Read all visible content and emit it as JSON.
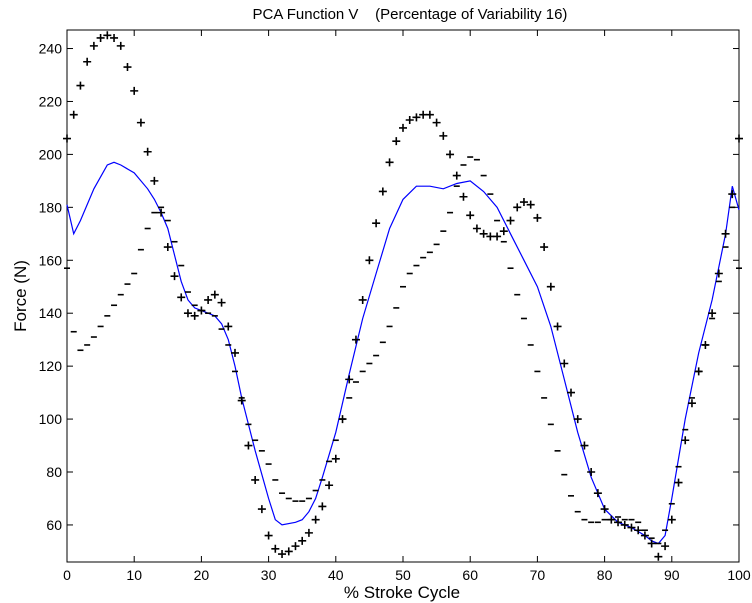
{
  "chart_data": {
    "type": "line",
    "title": "PCA Function V    (Percentage of Variability 16)",
    "xlabel": "% Stroke Cycle",
    "ylabel": "Force (N)",
    "xlim": [
      0,
      100
    ],
    "ylim": [
      46,
      247
    ],
    "xticks": [
      0,
      10,
      20,
      30,
      40,
      50,
      60,
      70,
      80,
      90,
      100
    ],
    "yticks": [
      60,
      80,
      100,
      120,
      140,
      160,
      180,
      200,
      220,
      240
    ],
    "grid": false,
    "legend": "none",
    "colors": {
      "mean": "#0000ff",
      "markers": "#000000"
    },
    "series": [
      {
        "marker": "line",
        "x": [
          0,
          1,
          2,
          4,
          6,
          7,
          8,
          10,
          12,
          13,
          14,
          15,
          16,
          17,
          18,
          19,
          20,
          21,
          22,
          23,
          24,
          25,
          26,
          28,
          30,
          31,
          32,
          34,
          35,
          36,
          37,
          38,
          40,
          42,
          44,
          46,
          48,
          50,
          52,
          54,
          56,
          58,
          60,
          62,
          64,
          66,
          68,
          70,
          72,
          74,
          76,
          78,
          80,
          82,
          84,
          86,
          87,
          88,
          89,
          90,
          92,
          94,
          96,
          98,
          99,
          100
        ],
        "y": [
          181,
          170,
          175,
          187,
          196,
          197,
          196,
          193,
          187,
          183,
          178,
          172,
          162,
          152,
          145,
          142,
          141,
          140,
          139,
          136,
          130,
          120,
          108,
          88,
          70,
          62,
          60,
          61,
          62,
          65,
          70,
          78,
          95,
          117,
          138,
          155,
          172,
          183,
          188,
          188,
          187,
          189,
          190,
          186,
          180,
          170,
          160,
          150,
          135,
          115,
          95,
          78,
          66,
          61,
          59,
          56,
          54,
          53,
          56,
          70,
          100,
          125,
          145,
          170,
          188,
          179
        ]
      },
      {
        "marker": "+",
        "x": [
          0,
          1,
          2,
          3,
          4,
          5,
          6,
          7,
          8,
          9,
          10,
          11,
          12,
          13,
          14,
          15,
          16,
          17,
          18,
          19,
          20,
          21,
          22,
          23,
          24,
          25,
          26,
          27,
          28,
          29,
          30,
          31,
          32,
          33,
          34,
          35,
          36,
          37,
          38,
          39,
          40,
          41,
          42,
          43,
          44,
          45,
          46,
          47,
          48,
          49,
          50,
          51,
          52,
          53,
          54,
          55,
          56,
          57,
          58,
          59,
          60,
          61,
          62,
          63,
          64,
          65,
          66,
          67,
          68,
          69,
          70,
          71,
          72,
          73,
          74,
          75,
          76,
          77,
          78,
          79,
          80,
          81,
          82,
          83,
          84,
          85,
          86,
          87,
          88,
          89,
          90,
          91,
          92,
          93,
          94,
          95,
          96,
          97,
          98,
          99,
          100
        ],
        "y": [
          206,
          215,
          226,
          235,
          241,
          244,
          245,
          244,
          241,
          233,
          224,
          212,
          201,
          190,
          178,
          165,
          154,
          146,
          140,
          139,
          141,
          145,
          147,
          144,
          135,
          125,
          107,
          90,
          77,
          66,
          56,
          51,
          49,
          50,
          52,
          54,
          57,
          62,
          67,
          75,
          85,
          100,
          115,
          130,
          145,
          160,
          174,
          186,
          197,
          205,
          210,
          213,
          214,
          215,
          215,
          212,
          207,
          200,
          192,
          184,
          177,
          172,
          170,
          169,
          169,
          171,
          175,
          180,
          182,
          181,
          176,
          165,
          150,
          135,
          121,
          110,
          100,
          90,
          80,
          72,
          66,
          62,
          61,
          60,
          59,
          58,
          56,
          53,
          48,
          52,
          62,
          76,
          92,
          106,
          118,
          128,
          140,
          155,
          170,
          185,
          206
        ]
      },
      {
        "marker": "-",
        "x": [
          0,
          1,
          2,
          3,
          4,
          5,
          6,
          7,
          8,
          9,
          10,
          11,
          12,
          13,
          14,
          15,
          16,
          17,
          18,
          19,
          20,
          21,
          22,
          23,
          24,
          25,
          26,
          27,
          28,
          29,
          30,
          31,
          32,
          33,
          34,
          35,
          36,
          37,
          38,
          39,
          40,
          41,
          42,
          43,
          44,
          45,
          46,
          47,
          48,
          49,
          50,
          51,
          52,
          53,
          54,
          55,
          56,
          57,
          58,
          59,
          60,
          61,
          62,
          63,
          64,
          65,
          66,
          67,
          68,
          69,
          70,
          71,
          72,
          73,
          74,
          75,
          76,
          77,
          78,
          79,
          80,
          81,
          82,
          83,
          84,
          85,
          86,
          87,
          88,
          89,
          90,
          91,
          92,
          93,
          94,
          95,
          96,
          97,
          98,
          99,
          100
        ],
        "y": [
          157,
          133,
          126,
          128,
          131,
          135,
          139,
          143,
          147,
          151,
          155,
          164,
          172,
          178,
          180,
          175,
          167,
          158,
          148,
          143,
          141,
          140,
          139,
          134,
          128,
          118,
          108,
          98,
          92,
          88,
          83,
          77,
          72,
          70,
          69,
          69,
          70,
          73,
          77,
          84,
          92,
          100,
          108,
          114,
          118,
          121,
          124,
          129,
          135,
          142,
          150,
          155,
          158,
          161,
          163,
          166,
          171,
          178,
          188,
          196,
          199,
          198,
          192,
          185,
          175,
          167,
          157,
          147,
          138,
          128,
          118,
          108,
          98,
          88,
          79,
          71,
          65,
          62,
          61,
          61,
          62,
          62,
          63,
          62,
          62,
          61,
          58,
          55,
          53,
          58,
          68,
          82,
          96,
          108,
          118,
          128,
          138,
          152,
          165,
          180,
          157
        ]
      }
    ]
  }
}
